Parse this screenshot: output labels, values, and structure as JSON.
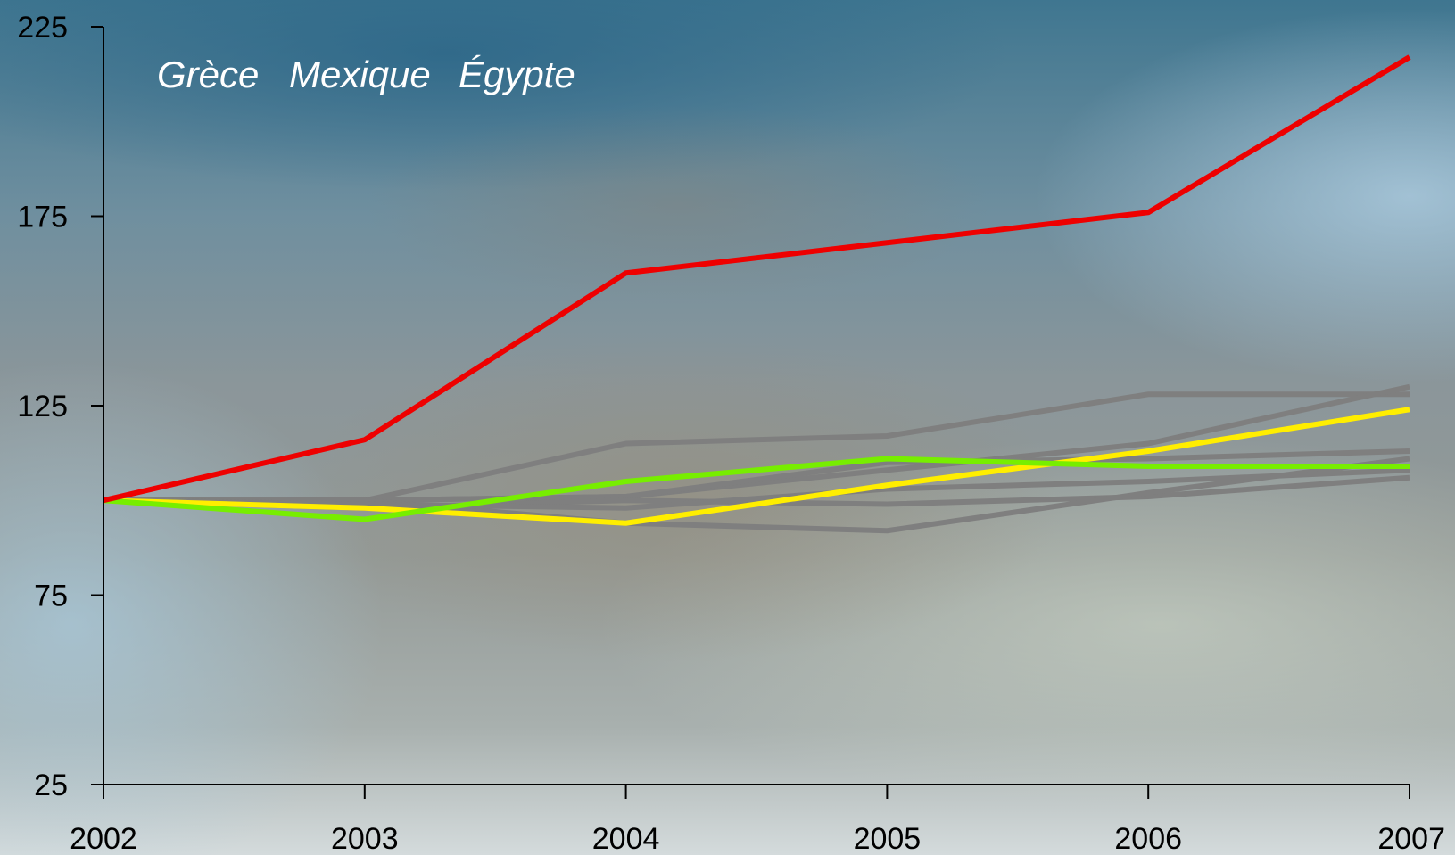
{
  "chart_data": {
    "type": "line",
    "title": "",
    "xlabel": "",
    "ylabel": "",
    "x": [
      "2002",
      "2003",
      "2004",
      "2005",
      "2006",
      "2007"
    ],
    "ylim": [
      25,
      225
    ],
    "y_ticks": [
      25,
      75,
      125,
      175,
      225
    ],
    "grid": false,
    "legend": {
      "placement": "top-left",
      "entries": [
        "Grèce",
        "Mexique",
        "Égypte"
      ]
    },
    "series": [
      {
        "name": "",
        "color": "#7f7f7f",
        "values": [
          100,
          100,
          115,
          117,
          128,
          128
        ]
      },
      {
        "name": "",
        "color": "#7f7f7f",
        "values": [
          100,
          100,
          101,
          108,
          115,
          130
        ]
      },
      {
        "name": "",
        "color": "#7f7f7f",
        "values": [
          100,
          100,
          101,
          110,
          111,
          113
        ]
      },
      {
        "name": "",
        "color": "#7f7f7f",
        "values": [
          100,
          98,
          100,
          99,
          101,
          106
        ]
      },
      {
        "name": "",
        "color": "#7f7f7f",
        "values": [
          100,
          100,
          94,
          92,
          102,
          111
        ]
      },
      {
        "name": "",
        "color": "#7f7f7f",
        "values": [
          100,
          99,
          98,
          103,
          105,
          108
        ]
      },
      {
        "name": "",
        "color": "#ffee00",
        "values": [
          100,
          98,
          94,
          104,
          113,
          124
        ]
      },
      {
        "name": "",
        "color": "#77ee00",
        "values": [
          100,
          95,
          105,
          111,
          109,
          109
        ]
      },
      {
        "name": "",
        "color": "#ee0000",
        "values": [
          100,
          116,
          160,
          168,
          176,
          217
        ]
      }
    ]
  }
}
